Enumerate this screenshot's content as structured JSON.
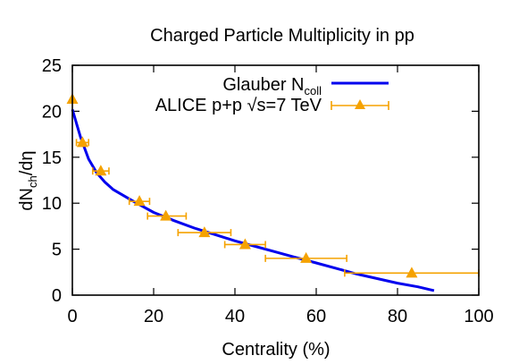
{
  "chart_data": {
    "type": "line",
    "title": "Charged Particle Multiplicity in pp",
    "xlabel": "Centrality (%)",
    "ylabel": {
      "main": "dN",
      "sub": "ch",
      "tail": "/dη"
    },
    "xlim": [
      0,
      100
    ],
    "ylim": [
      0,
      25
    ],
    "xticks": [
      0,
      20,
      40,
      60,
      80,
      100
    ],
    "yticks": [
      0,
      5,
      10,
      15,
      20,
      25
    ],
    "legend_position": "top-right",
    "series": [
      {
        "name": "Glauber N",
        "name_sub": "coll",
        "style": "line",
        "color": "#0000ee",
        "x": [
          0,
          2,
          4,
          6,
          8,
          10,
          15,
          20,
          25,
          30,
          35,
          40,
          45,
          50,
          55,
          60,
          65,
          70,
          75,
          80,
          85,
          89
        ],
        "y": [
          20.2,
          17.2,
          14.8,
          13.3,
          12.3,
          11.5,
          10.2,
          9.0,
          8.1,
          7.3,
          6.6,
          5.9,
          5.3,
          4.7,
          4.1,
          3.5,
          2.9,
          2.3,
          1.8,
          1.3,
          0.9,
          0.5
        ]
      },
      {
        "name": "ALICE p+p √s=7 TeV",
        "style": "points-xerr",
        "color": "#f5a200",
        "x": [
          0,
          2.5,
          7,
          16.5,
          23,
          32.5,
          42.5,
          57.5,
          83.5
        ],
        "y": [
          21.3,
          16.6,
          13.5,
          10.2,
          8.6,
          6.8,
          5.5,
          4.0,
          2.4
        ],
        "xerr_low": [
          0,
          1.5,
          2.0,
          2.5,
          4.5,
          6.5,
          5.0,
          10.0,
          16.5
        ],
        "xerr_high": [
          0,
          1.5,
          2.0,
          2.5,
          5.0,
          6.5,
          5.0,
          10.0,
          16.5
        ]
      }
    ]
  }
}
